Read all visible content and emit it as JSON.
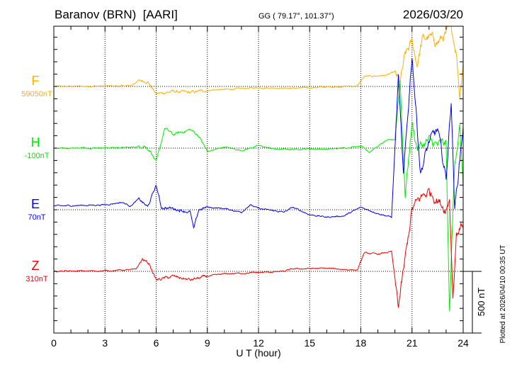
{
  "chart_data": {
    "type": "line",
    "title": "Baranov (BRN)  [AARI]",
    "coords": "GG ( 79.17°, 101.37°)",
    "date": "2026/03/20",
    "xlabel": "U T (hour)",
    "xlim": [
      0,
      24
    ],
    "xticks": [
      "0",
      "3",
      "6",
      "9",
      "12",
      "15",
      "18",
      "21",
      "24"
    ],
    "scale_label": "500 nT",
    "scale_nT": 500,
    "plotted_note": "Plotted at 2026/04/10 00:35 UT",
    "grid": true,
    "series": [
      {
        "name": "F",
        "baseline_label": "59050nT",
        "color": "#ffb000",
        "points": [
          [
            0,
            0
          ],
          [
            4.5,
            5
          ],
          [
            5,
            50
          ],
          [
            5.5,
            40
          ],
          [
            6,
            -60
          ],
          [
            7,
            -40
          ],
          [
            8,
            -50
          ],
          [
            9,
            -30
          ],
          [
            10,
            -25
          ],
          [
            12,
            -10
          ],
          [
            14,
            -15
          ],
          [
            16,
            -5
          ],
          [
            17.8,
            5
          ],
          [
            18.2,
            80
          ],
          [
            19.5,
            90
          ],
          [
            20,
            120
          ],
          [
            20.3,
            30
          ],
          [
            20.6,
            250
          ],
          [
            21,
            360
          ],
          [
            21.3,
            180
          ],
          [
            21.6,
            380
          ],
          [
            22,
            400
          ],
          [
            22.5,
            360
          ],
          [
            23,
            420
          ],
          [
            23.3,
            480
          ],
          [
            23.6,
            280
          ],
          [
            23.8,
            -75
          ],
          [
            24,
            220
          ]
        ]
      },
      {
        "name": "H",
        "baseline_label": "-100nT",
        "color": "#00ee00",
        "points": [
          [
            0,
            0
          ],
          [
            4.5,
            5
          ],
          [
            5.3,
            20
          ],
          [
            5.7,
            -30
          ],
          [
            6,
            -120
          ],
          [
            6.5,
            160
          ],
          [
            7,
            110
          ],
          [
            7.5,
            130
          ],
          [
            8,
            150
          ],
          [
            8.5,
            100
          ],
          [
            9,
            -30
          ],
          [
            10,
            10
          ],
          [
            11,
            -20
          ],
          [
            12,
            20
          ],
          [
            13,
            -10
          ],
          [
            14,
            -10
          ],
          [
            15,
            -5
          ],
          [
            16,
            -10
          ],
          [
            17,
            0
          ],
          [
            18,
            20
          ],
          [
            18.5,
            -30
          ],
          [
            19.5,
            60
          ],
          [
            20,
            70
          ],
          [
            20.3,
            560
          ],
          [
            20.6,
            -380
          ],
          [
            21,
            200
          ],
          [
            21.3,
            0
          ],
          [
            22,
            60
          ],
          [
            22.5,
            20
          ],
          [
            23,
            40
          ],
          [
            23.2,
            -1350
          ],
          [
            23.5,
            -100
          ],
          [
            23.8,
            160
          ],
          [
            24,
            -300
          ]
        ]
      },
      {
        "name": "E",
        "baseline_label": "70nT",
        "color": "#0000ee",
        "points": [
          [
            0,
            30
          ],
          [
            3,
            40
          ],
          [
            4,
            60
          ],
          [
            4.5,
            30
          ],
          [
            5,
            90
          ],
          [
            5.5,
            20
          ],
          [
            6,
            200
          ],
          [
            6.3,
            20
          ],
          [
            7,
            10
          ],
          [
            8,
            -20
          ],
          [
            8.2,
            -160
          ],
          [
            8.5,
            0
          ],
          [
            9,
            20
          ],
          [
            10,
            10
          ],
          [
            11,
            -20
          ],
          [
            11.5,
            40
          ],
          [
            12,
            10
          ],
          [
            13,
            -10
          ],
          [
            13.5,
            -20
          ],
          [
            14,
            20
          ],
          [
            15,
            -40
          ],
          [
            16,
            -60
          ],
          [
            17,
            -50
          ],
          [
            18,
            20
          ],
          [
            19,
            -30
          ],
          [
            19.8,
            -60
          ],
          [
            20.2,
            1070
          ],
          [
            20.5,
            250
          ],
          [
            21,
            1260
          ],
          [
            21.5,
            300
          ],
          [
            22,
            550
          ],
          [
            22.5,
            650
          ],
          [
            23,
            250
          ],
          [
            23.3,
            900
          ],
          [
            23.5,
            0
          ],
          [
            24,
            680
          ]
        ]
      },
      {
        "name": "Z",
        "baseline_label": "310nT",
        "color": "#ee0000",
        "points": [
          [
            0,
            0
          ],
          [
            3,
            5
          ],
          [
            4.8,
            15
          ],
          [
            5.2,
            100
          ],
          [
            5.6,
            60
          ],
          [
            6,
            -70
          ],
          [
            7,
            -40
          ],
          [
            8,
            -70
          ],
          [
            9,
            -40
          ],
          [
            10,
            -20
          ],
          [
            12,
            -10
          ],
          [
            13.5,
            0
          ],
          [
            14,
            20
          ],
          [
            16,
            25
          ],
          [
            17.8,
            10
          ],
          [
            18.2,
            150
          ],
          [
            19,
            140
          ],
          [
            19.8,
            160
          ],
          [
            20.2,
            -280
          ],
          [
            20.5,
            0
          ],
          [
            21,
            500
          ],
          [
            21.5,
            600
          ],
          [
            22,
            650
          ],
          [
            22.5,
            580
          ],
          [
            23,
            500
          ],
          [
            23.2,
            600
          ],
          [
            23.4,
            -200
          ],
          [
            23.6,
            300
          ],
          [
            24,
            400
          ]
        ]
      }
    ]
  }
}
